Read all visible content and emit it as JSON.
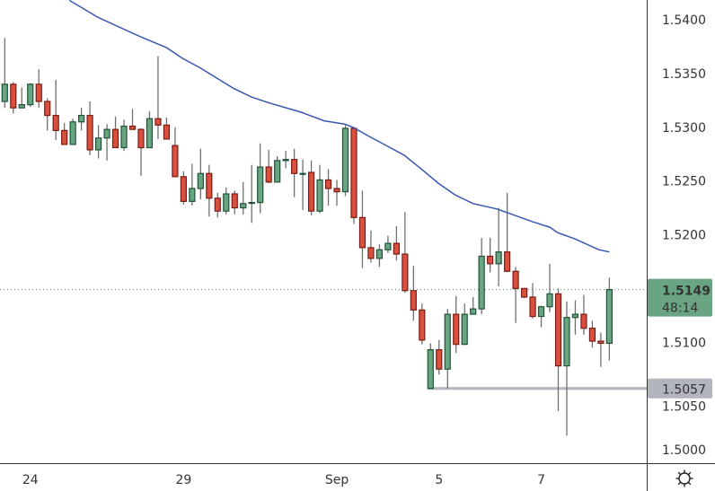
{
  "chart_data": {
    "type": "candlestick",
    "title": "",
    "xlabel": "",
    "ylabel": "",
    "ylim": [
      1.4987,
      1.5418
    ],
    "grid": false,
    "y_ticks": [
      "1.5400",
      "1.5350",
      "1.5300",
      "1.5250",
      "1.5200",
      "1.5100",
      "1.5050",
      "1.5000"
    ],
    "x_ticks": [
      {
        "label": "24",
        "candle": 4
      },
      {
        "label": "29",
        "candle": 22
      },
      {
        "label": "Sep",
        "candle": 40
      },
      {
        "label": "5",
        "candle": 52
      },
      {
        "label": "7",
        "candle": 64
      }
    ],
    "candles_ohlc": [
      [
        1.5324,
        1.5383,
        1.5318,
        1.534
      ],
      [
        1.534,
        1.5342,
        1.5313,
        1.5318
      ],
      [
        1.5318,
        1.5337,
        1.5318,
        1.5321
      ],
      [
        1.5321,
        1.5341,
        1.5319,
        1.534
      ],
      [
        1.534,
        1.5354,
        1.5318,
        1.5324
      ],
      [
        1.5324,
        1.5327,
        1.5297,
        1.5311
      ],
      [
        1.5311,
        1.5344,
        1.5288,
        1.5297
      ],
      [
        1.5297,
        1.5304,
        1.5284,
        1.5284
      ],
      [
        1.5284,
        1.5308,
        1.5284,
        1.5305
      ],
      [
        1.5305,
        1.5318,
        1.5297,
        1.5311
      ],
      [
        1.5311,
        1.5324,
        1.5274,
        1.5279
      ],
      [
        1.5279,
        1.5302,
        1.5271,
        1.529
      ],
      [
        1.529,
        1.5303,
        1.5269,
        1.5298
      ],
      [
        1.5298,
        1.531,
        1.5281,
        1.5281
      ],
      [
        1.5281,
        1.5307,
        1.5278,
        1.5301
      ],
      [
        1.5301,
        1.5317,
        1.5298,
        1.5298
      ],
      [
        1.5298,
        1.5299,
        1.5255,
        1.5281
      ],
      [
        1.5281,
        1.5315,
        1.5281,
        1.5308
      ],
      [
        1.5308,
        1.5366,
        1.5289,
        1.5302
      ],
      [
        1.5302,
        1.5309,
        1.5289,
        1.5289
      ],
      [
        1.5283,
        1.53,
        1.5254,
        1.5254
      ],
      [
        1.5254,
        1.5259,
        1.5228,
        1.5231
      ],
      [
        1.5231,
        1.5266,
        1.5227,
        1.5243
      ],
      [
        1.5243,
        1.528,
        1.5233,
        1.5257
      ],
      [
        1.5257,
        1.5265,
        1.5217,
        1.5234
      ],
      [
        1.5234,
        1.5239,
        1.5216,
        1.5222
      ],
      [
        1.5222,
        1.5244,
        1.5219,
        1.5238
      ],
      [
        1.5238,
        1.5241,
        1.5219,
        1.5225
      ],
      [
        1.5225,
        1.5249,
        1.5219,
        1.5229
      ],
      [
        1.523,
        1.5265,
        1.5211,
        1.523
      ],
      [
        1.523,
        1.5285,
        1.522,
        1.5263
      ],
      [
        1.5263,
        1.5279,
        1.5248,
        1.5249
      ],
      [
        1.5249,
        1.5273,
        1.5249,
        1.5269
      ],
      [
        1.5269,
        1.5278,
        1.5262,
        1.527
      ],
      [
        1.527,
        1.528,
        1.5235,
        1.5257
      ],
      [
        1.5257,
        1.527,
        1.5223,
        1.5257
      ],
      [
        1.5258,
        1.5269,
        1.5218,
        1.5222
      ],
      [
        1.5222,
        1.5265,
        1.522,
        1.5251
      ],
      [
        1.5251,
        1.5261,
        1.5227,
        1.5243
      ],
      [
        1.5243,
        1.5251,
        1.5227,
        1.524
      ],
      [
        1.524,
        1.5302,
        1.5236,
        1.5299
      ],
      [
        1.5299,
        1.53,
        1.521,
        1.5216
      ],
      [
        1.5216,
        1.5241,
        1.5169,
        1.5188
      ],
      [
        1.5188,
        1.5204,
        1.5174,
        1.5178
      ],
      [
        1.5178,
        1.5191,
        1.517,
        1.5186
      ],
      [
        1.5186,
        1.5199,
        1.5183,
        1.5192
      ],
      [
        1.5192,
        1.5208,
        1.5176,
        1.5182
      ],
      [
        1.5182,
        1.5221,
        1.5146,
        1.5148
      ],
      [
        1.5148,
        1.5171,
        1.512,
        1.513
      ],
      [
        1.513,
        1.5136,
        1.5098,
        1.5102
      ],
      [
        1.5057,
        1.5099,
        1.5057,
        1.5093
      ],
      [
        1.5093,
        1.5102,
        1.507,
        1.5075
      ],
      [
        1.5075,
        1.5131,
        1.5057,
        1.5126
      ],
      [
        1.5126,
        1.5143,
        1.509,
        1.5098
      ],
      [
        1.5098,
        1.5136,
        1.5098,
        1.5126
      ],
      [
        1.5126,
        1.5142,
        1.5126,
        1.5131
      ],
      [
        1.5131,
        1.5197,
        1.5126,
        1.518
      ],
      [
        1.518,
        1.5197,
        1.5165,
        1.5173
      ],
      [
        1.5173,
        1.5225,
        1.5152,
        1.5184
      ],
      [
        1.5184,
        1.5239,
        1.5165,
        1.5166
      ],
      [
        1.5166,
        1.517,
        1.5118,
        1.515
      ],
      [
        1.515,
        1.515,
        1.5141,
        1.5142
      ],
      [
        1.5142,
        1.5155,
        1.5122,
        1.5124
      ],
      [
        1.5124,
        1.5134,
        1.5114,
        1.5133
      ],
      [
        1.5133,
        1.5173,
        1.5128,
        1.5145
      ],
      [
        1.5145,
        1.515,
        1.5036,
        1.5078
      ],
      [
        1.5078,
        1.5138,
        1.5013,
        1.5123
      ],
      [
        1.5123,
        1.5139,
        1.5107,
        1.5126
      ],
      [
        1.5126,
        1.5144,
        1.5107,
        1.5113
      ],
      [
        1.5113,
        1.512,
        1.5095,
        1.5101
      ],
      [
        1.5101,
        1.5109,
        1.5077,
        1.5099
      ],
      [
        1.5099,
        1.516,
        1.5083,
        1.5149
      ]
    ],
    "moving_average": [
      [
        8.6,
        1.5418
      ],
      [
        12.0,
        1.5402
      ],
      [
        17.0,
        1.5384
      ],
      [
        20.0,
        1.5374
      ],
      [
        21.9,
        1.5364
      ],
      [
        24.0,
        1.5355
      ],
      [
        27.9,
        1.5336
      ],
      [
        30.0,
        1.5328
      ],
      [
        31.9,
        1.5323
      ],
      [
        35.8,
        1.5314
      ],
      [
        38.5,
        1.5306
      ],
      [
        40.9,
        1.5303
      ],
      [
        41.9,
        1.53
      ],
      [
        43.9,
        1.5291
      ],
      [
        45.8,
        1.5283
      ],
      [
        47.9,
        1.5274
      ],
      [
        49.8,
        1.5262
      ],
      [
        51.9,
        1.5248
      ],
      [
        53.9,
        1.5237
      ],
      [
        56.0,
        1.5229
      ],
      [
        58.8,
        1.5224
      ],
      [
        60.9,
        1.5218
      ],
      [
        63.0,
        1.5212
      ],
      [
        65.0,
        1.5207
      ],
      [
        65.9,
        1.5202
      ],
      [
        68.0,
        1.5196
      ],
      [
        70.8,
        1.5186
      ],
      [
        72.0,
        1.5184
      ]
    ],
    "support_line": {
      "price": 1.5057,
      "from_candle": 51,
      "label": "1.5057"
    },
    "current_price": {
      "label": "1.5149",
      "price": 1.5149,
      "countdown": "48:14"
    },
    "colors": {
      "up_body": "#6aa583",
      "up_border": "#1f5237",
      "down_body": "#d9503f",
      "down_border": "#7a1c14",
      "wick": "#707070",
      "moving_average": "#3a56b0",
      "support_line": "#b2b5be",
      "price_label": "#6aa583"
    }
  },
  "axis": {
    "settings_icon": "gear-icon"
  }
}
